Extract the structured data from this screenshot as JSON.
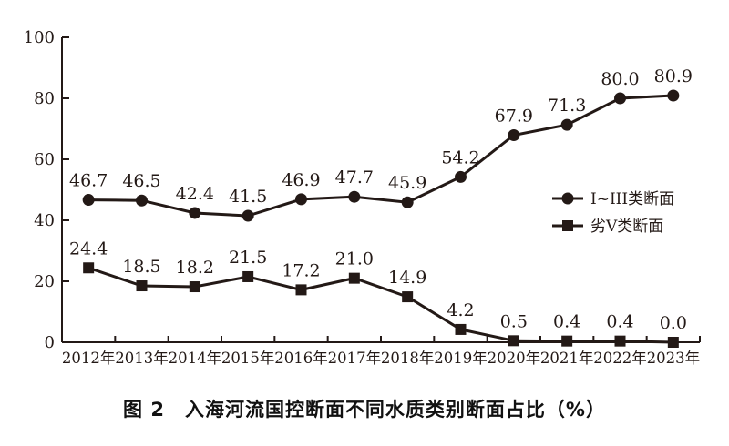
{
  "chart_data": {
    "type": "line",
    "title": "图 2　入海河流国控断面不同水质类别断面占比（%）",
    "categories": [
      "2012年",
      "2013年",
      "2014年",
      "2015年",
      "2016年",
      "2017年",
      "2018年",
      "2019年",
      "2020年",
      "2021年",
      "2022年",
      "2023年"
    ],
    "series": [
      {
        "name": "I~III类断面",
        "marker": "circle",
        "values": [
          46.7,
          46.5,
          42.4,
          41.5,
          46.9,
          47.7,
          45.9,
          54.2,
          67.9,
          71.3,
          80.0,
          80.9
        ],
        "labels": [
          "46.7",
          "46.5",
          "42.4",
          "41.5",
          "46.9",
          "47.7",
          "45.9",
          "54.2",
          "67.9",
          "71.3",
          "80.0",
          "80.9"
        ]
      },
      {
        "name": "劣V类断面",
        "marker": "square",
        "values": [
          24.4,
          18.5,
          18.2,
          21.5,
          17.2,
          21.0,
          14.9,
          4.2,
          0.5,
          0.4,
          0.4,
          0.0
        ],
        "labels": [
          "24.4",
          "18.5",
          "18.2",
          "21.5",
          "17.2",
          "21.0",
          "14.9",
          "4.2",
          "0.5",
          "0.4",
          "0.4",
          "0.0"
        ]
      }
    ],
    "ylim": [
      0,
      100
    ],
    "yticks": [
      0,
      20,
      40,
      60,
      80,
      100
    ],
    "grid": false,
    "legend_position": "right-middle",
    "colors": {
      "line": "#231916",
      "text": "#231916",
      "background": "#ffffff"
    }
  }
}
